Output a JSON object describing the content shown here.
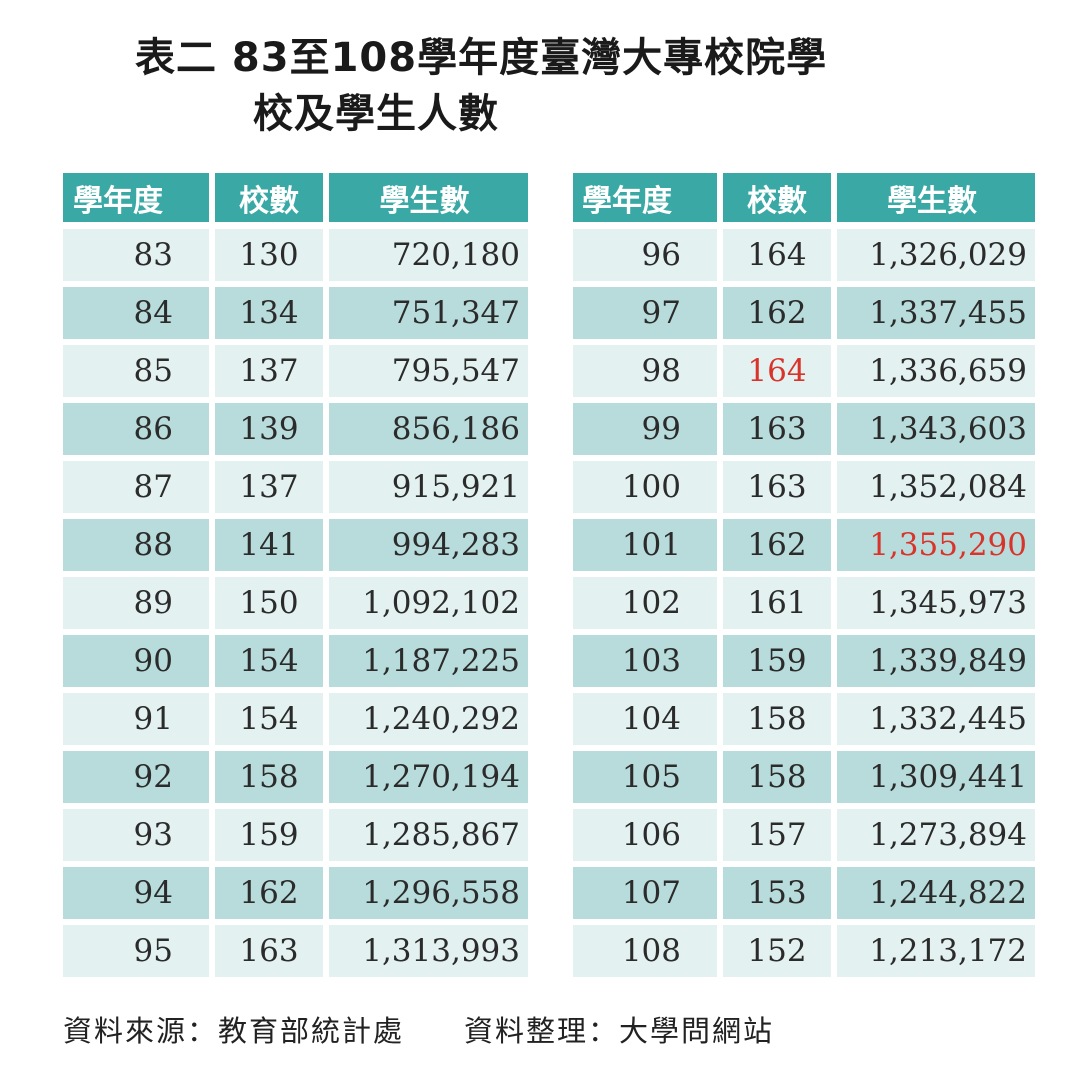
{
  "title_line1": "表二 83至108學年度臺灣大專校院學",
  "title_line2": "校及學生人數",
  "headers": [
    "學年度",
    "校數",
    "學生數"
  ],
  "highlight_color": "#d9342b",
  "header_color": "#3aa9a5",
  "row_colors": [
    "#e3f2f1",
    "#b7dcdb"
  ],
  "chart_data": {
    "type": "table",
    "columns": [
      "學年度",
      "校數",
      "學生數"
    ],
    "left_rows": [
      [
        "83",
        "130",
        "720,180"
      ],
      [
        "84",
        "134",
        "751,347"
      ],
      [
        "85",
        "137",
        "795,547"
      ],
      [
        "86",
        "139",
        "856,186"
      ],
      [
        "87",
        "137",
        "915,921"
      ],
      [
        "88",
        "141",
        "994,283"
      ],
      [
        "89",
        "150",
        "1,092,102"
      ],
      [
        "90",
        "154",
        "1,187,225"
      ],
      [
        "91",
        "154",
        "1,240,292"
      ],
      [
        "92",
        "158",
        "1,270,194"
      ],
      [
        "93",
        "159",
        "1,285,867"
      ],
      [
        "94",
        "162",
        "1,296,558"
      ],
      [
        "95",
        "163",
        "1,313,993"
      ]
    ],
    "right_rows": [
      [
        "96",
        "164",
        "1,326,029"
      ],
      [
        "97",
        "162",
        "1,337,455"
      ],
      [
        "98",
        "164",
        "1,336,659"
      ],
      [
        "99",
        "163",
        "1,343,603"
      ],
      [
        "100",
        "163",
        "1,352,084"
      ],
      [
        "101",
        "162",
        "1,355,290"
      ],
      [
        "102",
        "161",
        "1,345,973"
      ],
      [
        "103",
        "159",
        "1,339,849"
      ],
      [
        "104",
        "158",
        "1,332,445"
      ],
      [
        "105",
        "158",
        "1,309,441"
      ],
      [
        "106",
        "157",
        "1,273,894"
      ],
      [
        "107",
        "153",
        "1,244,822"
      ],
      [
        "108",
        "152",
        "1,213,172"
      ]
    ],
    "highlighted_cells": [
      {
        "table": "right",
        "row": 2,
        "col": 1
      },
      {
        "table": "right",
        "row": 5,
        "col": 2
      }
    ]
  },
  "source": "資料來源：教育部統計處",
  "compiled_by": "資料整理：大學問網站"
}
